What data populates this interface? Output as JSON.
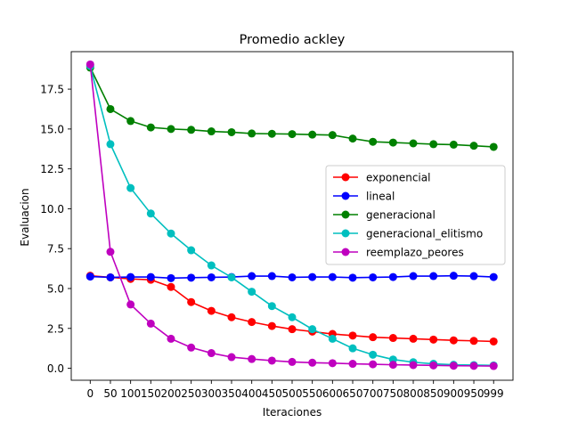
{
  "chart_data": {
    "type": "line",
    "title": "Promedio ackley",
    "xlabel": "Iteraciones",
    "ylabel": "Evaluacion",
    "x": [
      0,
      50,
      100,
      150,
      200,
      250,
      300,
      350,
      400,
      450,
      500,
      550,
      600,
      650,
      700,
      750,
      800,
      850,
      900,
      950,
      999
    ],
    "x_tick_labels": [
      "0",
      "50",
      "100",
      "150",
      "200",
      "250",
      "300",
      "350",
      "400",
      "450",
      "500",
      "550",
      "600",
      "650",
      "700",
      "750",
      "800",
      "850",
      "900",
      "950",
      "999"
    ],
    "y_ticks": [
      0.0,
      2.5,
      5.0,
      7.5,
      10.0,
      12.5,
      15.0,
      17.5
    ],
    "y_tick_labels": [
      "0.0",
      "2.5",
      "5.0",
      "7.5",
      "10.0",
      "12.5",
      "15.0",
      "17.5"
    ],
    "xlim": [
      -47,
      1047
    ],
    "ylim": [
      -0.75,
      19.85
    ],
    "grid": false,
    "legend_position": "center-right",
    "series": [
      {
        "name": "exponencial",
        "color": "#ff0000",
        "values": [
          5.8,
          5.7,
          5.6,
          5.55,
          5.1,
          4.15,
          3.6,
          3.2,
          2.9,
          2.65,
          2.45,
          2.3,
          2.15,
          2.05,
          1.95,
          1.9,
          1.85,
          1.8,
          1.75,
          1.72,
          1.68
        ]
      },
      {
        "name": "lineal",
        "color": "#0000ff",
        "values": [
          5.75,
          5.7,
          5.72,
          5.72,
          5.65,
          5.68,
          5.7,
          5.72,
          5.78,
          5.78,
          5.7,
          5.72,
          5.72,
          5.68,
          5.7,
          5.72,
          5.78,
          5.78,
          5.8,
          5.78,
          5.72
        ]
      },
      {
        "name": "generacional",
        "color": "#008000",
        "values": [
          18.85,
          16.25,
          15.5,
          15.1,
          15.0,
          14.95,
          14.85,
          14.8,
          14.72,
          14.7,
          14.68,
          14.65,
          14.62,
          14.4,
          14.2,
          14.15,
          14.1,
          14.05,
          14.02,
          13.95,
          13.88
        ]
      },
      {
        "name": "generacional_elitismo",
        "color": "#00bfbf",
        "values": [
          18.95,
          14.05,
          11.3,
          9.7,
          8.45,
          7.4,
          6.45,
          5.7,
          4.8,
          3.9,
          3.2,
          2.45,
          1.85,
          1.25,
          0.85,
          0.55,
          0.38,
          0.28,
          0.22,
          0.2,
          0.18
        ]
      },
      {
        "name": "reemplazo_peores",
        "color": "#bf00bf",
        "values": [
          19.05,
          7.3,
          4.0,
          2.8,
          1.85,
          1.3,
          0.95,
          0.7,
          0.58,
          0.48,
          0.4,
          0.35,
          0.32,
          0.28,
          0.25,
          0.22,
          0.2,
          0.18,
          0.16,
          0.15,
          0.14
        ]
      }
    ]
  }
}
